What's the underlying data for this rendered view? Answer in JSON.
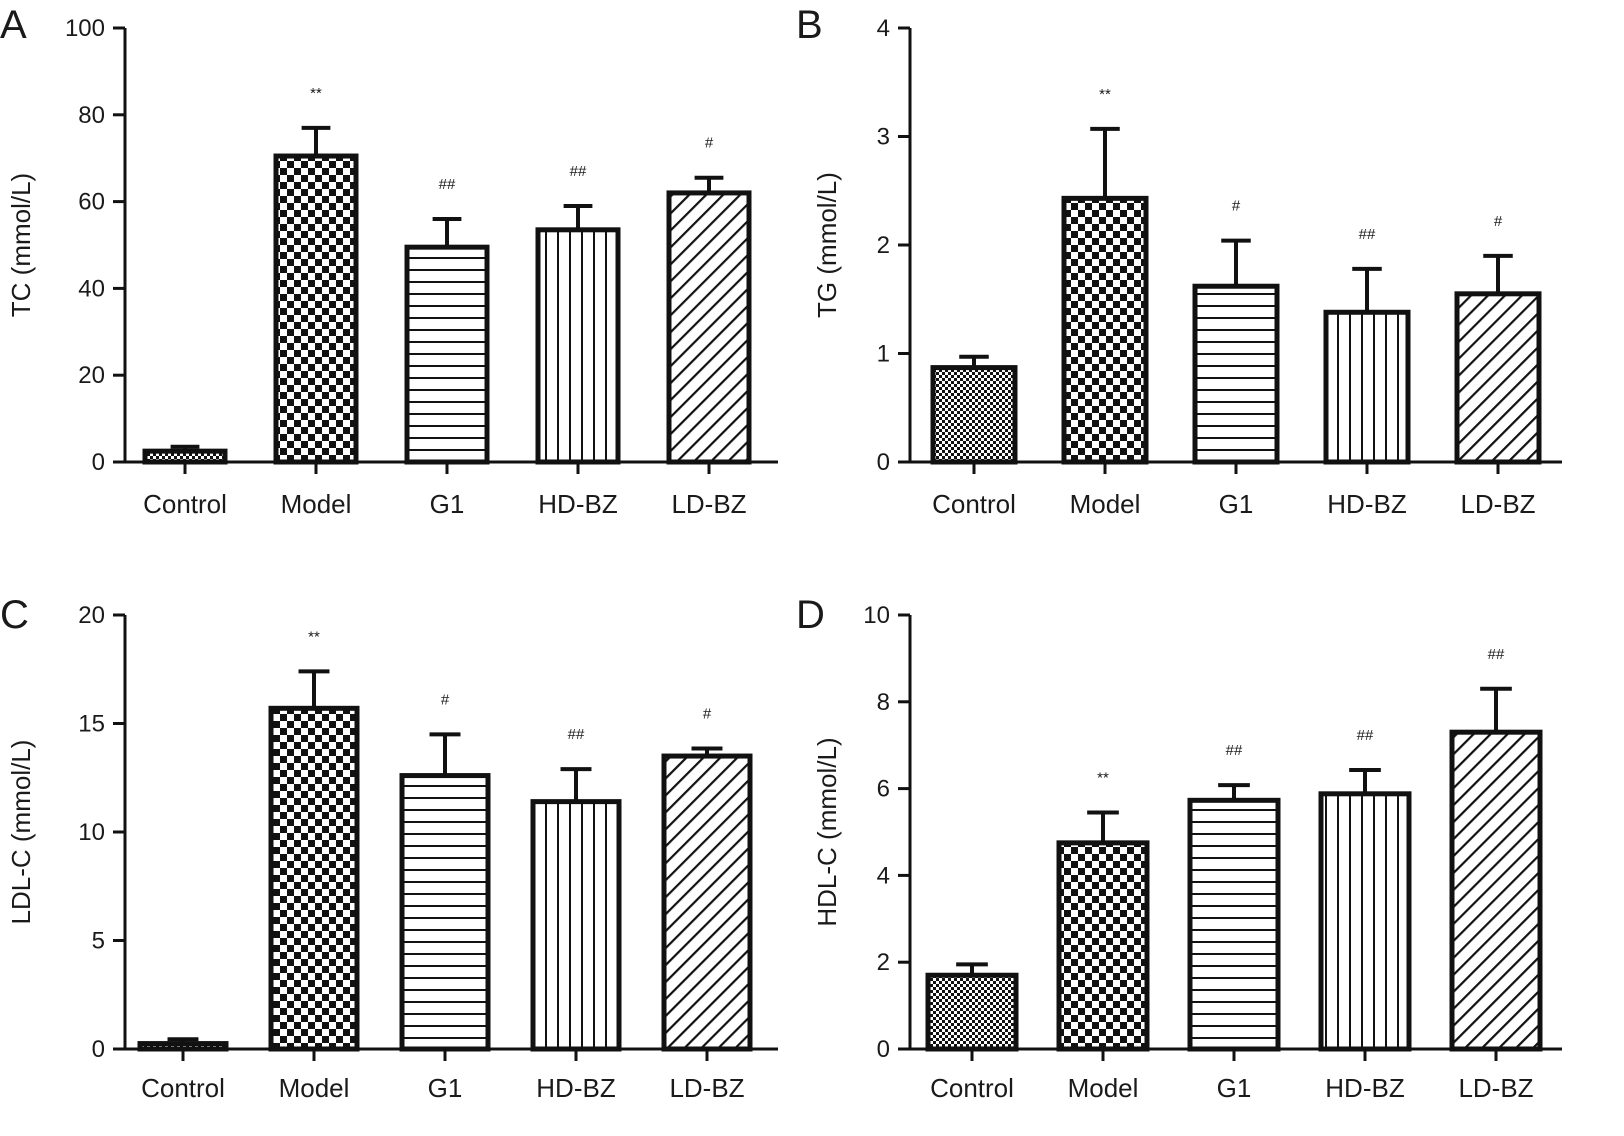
{
  "chart_data": [
    {
      "type": "bar",
      "panel": "A",
      "ylabel": "TC (mmol/L)",
      "ylim": [
        0,
        100
      ],
      "yticks": [
        "0",
        "20",
        "40",
        "60",
        "80",
        "100"
      ],
      "categories": [
        "Control",
        "Model",
        "G1",
        "HD-BZ",
        "LD-BZ"
      ],
      "values": [
        2.5,
        70.5,
        49.5,
        53.5,
        62
      ],
      "errors": [
        1,
        6.5,
        6.5,
        5.5,
        3.5
      ],
      "significance": [
        "",
        "**",
        "##",
        "##",
        "#"
      ],
      "patterns": [
        "fine-check",
        "check",
        "hlines",
        "vlines",
        "diag"
      ]
    },
    {
      "type": "bar",
      "panel": "B",
      "ylabel": "TG (mmol/L)",
      "ylim": [
        0,
        4
      ],
      "yticks": [
        "0",
        "1",
        "2",
        "3",
        "4"
      ],
      "categories": [
        "Control",
        "Model",
        "G1",
        "HD-BZ",
        "LD-BZ"
      ],
      "values": [
        0.87,
        2.43,
        1.62,
        1.38,
        1.55
      ],
      "errors": [
        0.1,
        0.64,
        0.42,
        0.4,
        0.35
      ],
      "significance": [
        "",
        "**",
        "#",
        "##",
        "#"
      ],
      "patterns": [
        "fine-check",
        "check",
        "hlines",
        "vlines",
        "diag"
      ]
    },
    {
      "type": "bar",
      "panel": "C",
      "ylabel": "LDL-C (mmol/L)",
      "ylim": [
        0,
        20
      ],
      "yticks": [
        "0",
        "5",
        "10",
        "15",
        "20"
      ],
      "categories": [
        "Control",
        "Model",
        "G1",
        "HD-BZ",
        "LD-BZ"
      ],
      "values": [
        0.25,
        15.7,
        12.6,
        11.4,
        13.5
      ],
      "errors": [
        0.2,
        1.7,
        1.9,
        1.5,
        0.35
      ],
      "significance": [
        "",
        "**",
        "#",
        "##",
        "#"
      ],
      "patterns": [
        "fine-check",
        "check",
        "hlines",
        "vlines",
        "diag"
      ]
    },
    {
      "type": "bar",
      "panel": "D",
      "ylabel": "HDL-C (mmol/L)",
      "ylim": [
        0,
        10
      ],
      "yticks": [
        "0",
        "2",
        "4",
        "6",
        "8",
        "10"
      ],
      "categories": [
        "Control",
        "Model",
        "G1",
        "HD-BZ",
        "LD-BZ"
      ],
      "values": [
        1.7,
        4.75,
        5.73,
        5.88,
        7.3
      ],
      "errors": [
        0.25,
        0.7,
        0.35,
        0.55,
        1.0
      ],
      "significance": [
        "",
        "**",
        "##",
        "##",
        "##"
      ],
      "patterns": [
        "fine-check",
        "check",
        "hlines",
        "vlines",
        "diag"
      ]
    }
  ]
}
